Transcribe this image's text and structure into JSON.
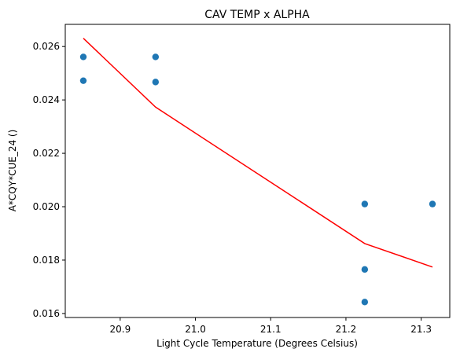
{
  "chart_data": {
    "type": "scatter",
    "title": "CAV TEMP x ALPHA",
    "xlabel": "Light Cycle Temperature (Degrees Celsius)",
    "ylabel": "A*CQY*CUE_24 ()",
    "xlim": [
      20.827,
      21.338
    ],
    "ylim": [
      0.01585,
      0.02683
    ],
    "xticks": [
      "20.9",
      "21.0",
      "21.1",
      "21.2",
      "21.3"
    ],
    "xtick_values": [
      20.9,
      21.0,
      21.1,
      21.2,
      21.3
    ],
    "yticks": [
      "0.016",
      "0.018",
      "0.020",
      "0.022",
      "0.024",
      "0.026"
    ],
    "ytick_values": [
      0.016,
      0.018,
      0.02,
      0.022,
      0.024,
      0.026
    ],
    "grid": false,
    "series": [
      {
        "kind": "scatter",
        "color": "#1f77b4",
        "points": [
          [
            20.851,
            0.02561
          ],
          [
            20.851,
            0.02472
          ],
          [
            20.947,
            0.02561
          ],
          [
            20.947,
            0.02467
          ],
          [
            21.225,
            0.0201
          ],
          [
            21.225,
            0.01765
          ],
          [
            21.225,
            0.01643
          ],
          [
            21.315,
            0.0201
          ]
        ]
      },
      {
        "kind": "line",
        "color": "#ff0000",
        "points": [
          [
            20.851,
            0.02631
          ],
          [
            20.947,
            0.02373
          ],
          [
            21.225,
            0.01862
          ],
          [
            21.315,
            0.01774
          ]
        ]
      }
    ]
  }
}
